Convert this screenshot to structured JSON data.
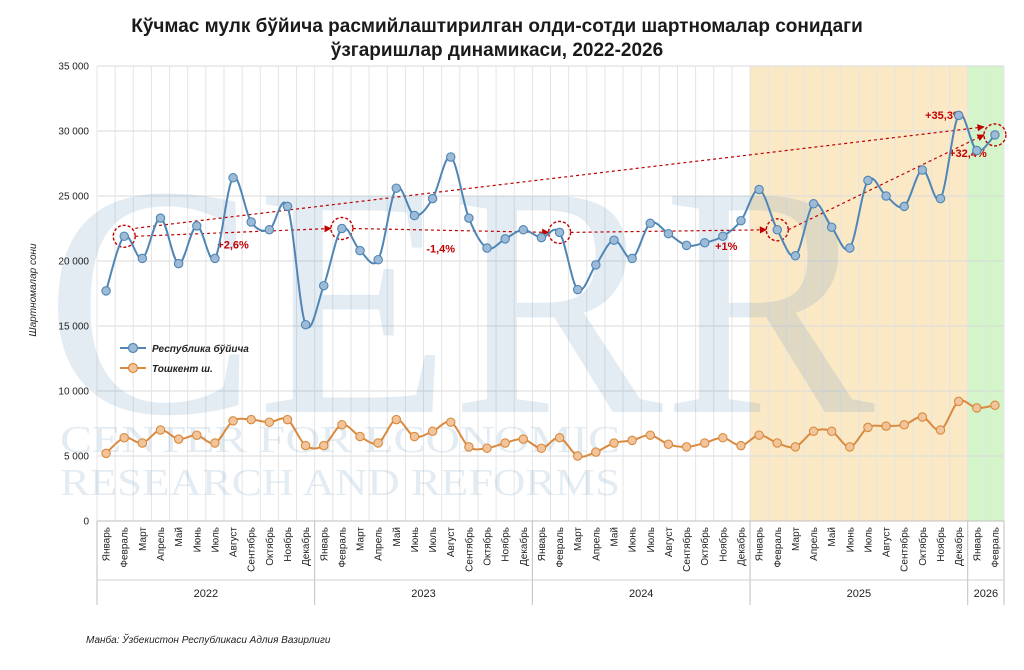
{
  "title_line1": "Кўчмас мулк бўйича расмийлаштирилган олди-сотди шартномалар сонидаги",
  "title_line2": "ўзгаришлар динамикаси, 2022-2026",
  "ylabel": "Шартномалар сони",
  "source": "Манба: Ўзбекистон Республикаси Адлия Вазирлиги",
  "watermark": {
    "big": "CERR",
    "line1": "CENTER FOR ECONOMIC",
    "line2": "RESEARCH AND REFORMS"
  },
  "colors": {
    "republic": "#4f86b5",
    "tashkent": "#d98a3f",
    "annotation": "#c00000",
    "shade_2025": "#fbe9c6",
    "shade_2026": "#d4f5c9",
    "grid": "#d9d9d9"
  },
  "chart_data": {
    "type": "line",
    "ylim": [
      0,
      35000
    ],
    "yticks": [
      0,
      5000,
      10000,
      15000,
      20000,
      25000,
      30000,
      35000
    ],
    "ytick_labels": [
      "0",
      "5 000",
      "10 000",
      "15 000",
      "20 000",
      "25 000",
      "30 000",
      "35 000"
    ],
    "grid": true,
    "legend_position": "middle-left",
    "month_names": [
      "Январь",
      "Февраль",
      "Март",
      "Апрель",
      "Май",
      "Июнь",
      "Июль",
      "Август",
      "Сентябрь",
      "Октябрь",
      "Ноябрь",
      "Декабрь"
    ],
    "years": [
      {
        "label": "2022",
        "months": 12
      },
      {
        "label": "2023",
        "months": 12
      },
      {
        "label": "2024",
        "months": 12
      },
      {
        "label": "2025",
        "months": 12
      },
      {
        "label": "2026",
        "months": 2
      }
    ],
    "categories": [
      "Январь 2022",
      "Февраль 2022",
      "Март 2022",
      "Апрель 2022",
      "Май 2022",
      "Июнь 2022",
      "Июль 2022",
      "Август 2022",
      "Сентябрь 2022",
      "Октябрь 2022",
      "Ноябрь 2022",
      "Декабрь 2022",
      "Январь 2023",
      "Февраль 2023",
      "Март 2023",
      "Апрель 2023",
      "Май 2023",
      "Июнь 2023",
      "Июль 2023",
      "Август 2023",
      "Сентябрь 2023",
      "Октябрь 2023",
      "Ноябрь 2023",
      "Декабрь 2023",
      "Январь 2024",
      "Февраль 2024",
      "Март 2024",
      "Апрель 2024",
      "Май 2024",
      "Июнь 2024",
      "Июль 2024",
      "Август 2024",
      "Сентябрь 2024",
      "Октябрь 2024",
      "Ноябрь 2024",
      "Декабрь 2024",
      "Январь 2025",
      "Февраль 2025",
      "Март 2025",
      "Апрель 2025",
      "Май 2025",
      "Июнь 2025",
      "Июль 2025",
      "Август 2025",
      "Сентябрь 2025",
      "Октябрь 2025",
      "Ноябрь 2025",
      "Декабрь 2025",
      "Январь 2026",
      "Февраль 2026"
    ],
    "series": [
      {
        "name": "Республика бўйича",
        "color": "#4f86b5",
        "values": [
          17700,
          21900,
          20200,
          23300,
          19800,
          22700,
          20200,
          26400,
          23000,
          22400,
          24200,
          15100,
          18100,
          22500,
          20800,
          20100,
          25600,
          23500,
          24800,
          28000,
          23300,
          21000,
          21700,
          22400,
          21800,
          22200,
          17800,
          19700,
          21600,
          20200,
          22900,
          22100,
          21200,
          21400,
          21900,
          23100,
          25500,
          22400,
          20400,
          24400,
          22600,
          21000,
          26200,
          25000,
          24200,
          27000,
          24800,
          31200,
          28500,
          29700
        ]
      },
      {
        "name": "Тошкент ш.",
        "color": "#d98a3f",
        "values": [
          5200,
          6400,
          6000,
          7000,
          6300,
          6600,
          6000,
          7700,
          7800,
          7600,
          7800,
          5800,
          5800,
          7400,
          6500,
          6000,
          7800,
          6500,
          6900,
          7600,
          5700,
          5600,
          6000,
          6300,
          5600,
          6400,
          5000,
          5300,
          6000,
          6200,
          6600,
          5900,
          5700,
          6000,
          6400,
          5800,
          6600,
          6000,
          5700,
          6900,
          6900,
          5700,
          7200,
          7300,
          7400,
          8000,
          7000,
          9200,
          8700,
          8900
        ]
      }
    ],
    "highlights": [
      1,
      13,
      25,
      37,
      49
    ],
    "annotations": [
      {
        "text": "+2,6%",
        "from": 1,
        "to": 13
      },
      {
        "text": "-1,4%",
        "from": 13,
        "to": 25
      },
      {
        "text": "+1%",
        "from": 25,
        "to": 37
      },
      {
        "text": "+35,3%",
        "from": 1,
        "to": 49
      },
      {
        "text": "+32,4%",
        "from": 37,
        "to": 49
      }
    ]
  }
}
